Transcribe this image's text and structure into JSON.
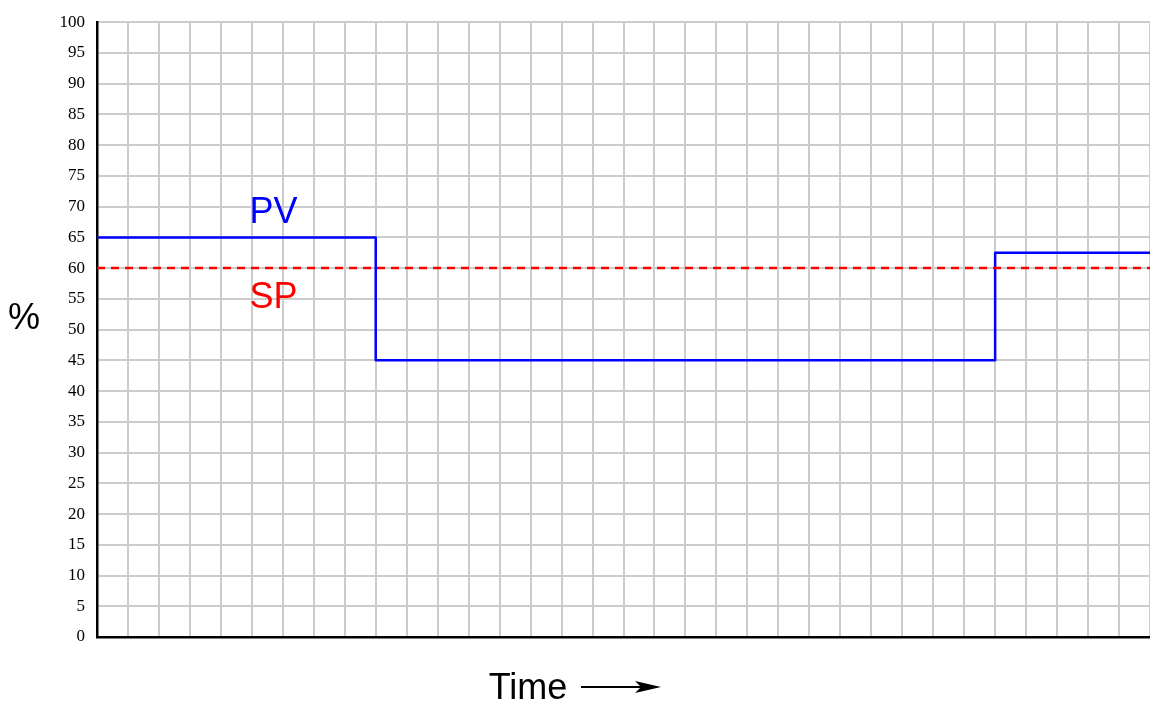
{
  "chart_data": {
    "type": "step",
    "xlabel": "Time",
    "ylabel": "%",
    "categories": [
      null,
      null,
      null,
      null,
      null,
      null,
      null,
      null,
      null,
      null,
      null,
      null,
      null,
      null,
      null,
      null,
      null,
      null,
      null,
      null,
      null,
      null,
      null,
      null,
      null,
      null,
      null,
      null,
      null,
      null,
      null,
      null,
      null,
      null,
      null
    ],
    "series": [
      {
        "name": "PV",
        "color": "#0000ff",
        "values": [
          65,
          65,
          65,
          65,
          65,
          65,
          65,
          65,
          65,
          45,
          45,
          45,
          45,
          45,
          45,
          45,
          45,
          45,
          45,
          45,
          45,
          45,
          45,
          45,
          45,
          45,
          45,
          45,
          45,
          62.5,
          62.5,
          62.5,
          62.5,
          62.5,
          62.5
        ]
      }
    ],
    "ref_lines": [
      {
        "axis": "y",
        "value": 60,
        "label": "SP",
        "color": "#ff0000",
        "line_style": "dashed"
      }
    ],
    "ylim": [
      0,
      100
    ],
    "yticks": [
      0,
      5,
      10,
      15,
      20,
      25,
      30,
      35,
      40,
      45,
      50,
      55,
      60,
      65,
      70,
      75,
      80,
      85,
      90,
      95,
      100
    ],
    "grid": true,
    "legend": false,
    "marker": "none",
    "line_style": "solid",
    "tick_labels": "y"
  }
}
